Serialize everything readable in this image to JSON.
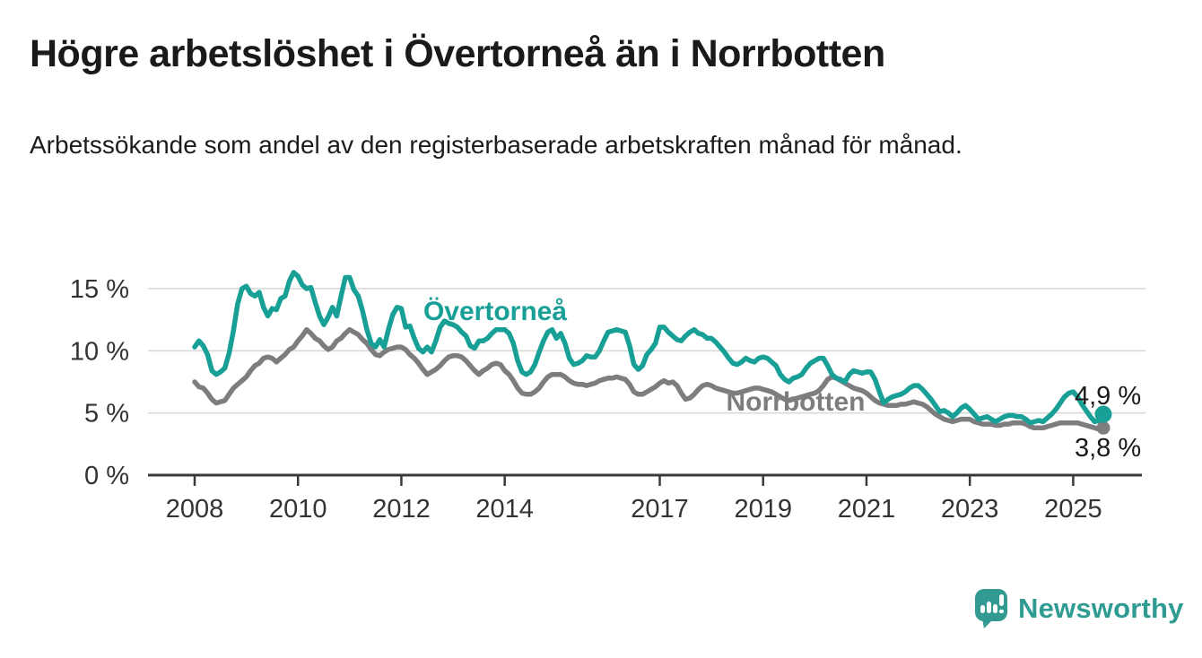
{
  "title": "Högre arbetslöshet i Övertorneå än i Norrbotten",
  "subtitle": "Arbetssökande som andel av den registerbaserade arbetskraften månad för månad.",
  "colors": {
    "overtornea_teal": "#18a096",
    "norrbotten_gray": "#7d7d80",
    "grid_gray": "#d9d9d9",
    "axis_dark": "#3a3a3a",
    "text_dark": "#1a1a1a",
    "tick_text": "#333333",
    "logo_teal": "#339a91"
  },
  "chart_data": {
    "type": "line",
    "frequency": "monthly",
    "x_start": "2008-01",
    "x_end": "2025-08",
    "grid": "horizontal",
    "ylim": [
      0,
      17
    ],
    "y_ticks": [
      {
        "value": 0,
        "label": "0 %"
      },
      {
        "value": 5,
        "label": "5 %"
      },
      {
        "value": 10,
        "label": "10 %"
      },
      {
        "value": 15,
        "label": "15 %"
      }
    ],
    "x_tick_years": [
      "2008",
      "2010",
      "2012",
      "2014",
      "2017",
      "2019",
      "2021",
      "2023",
      "2025"
    ],
    "series": [
      {
        "name": "Norrbotten",
        "end_label": "3,8 %",
        "last_value": 3.8,
        "values": [
          7.5,
          7.1,
          7.0,
          6.6,
          6.1,
          5.8,
          5.9,
          6.0,
          6.5,
          7.0,
          7.3,
          7.6,
          7.9,
          8.4,
          8.8,
          9.0,
          9.4,
          9.5,
          9.4,
          9.1,
          9.4,
          9.7,
          10.1,
          10.3,
          10.8,
          11.2,
          11.7,
          11.4,
          11.0,
          10.8,
          10.4,
          10.1,
          10.3,
          10.8,
          11.0,
          11.4,
          11.7,
          11.5,
          11.3,
          10.9,
          10.6,
          10.1,
          9.7,
          9.6,
          9.9,
          10.1,
          10.2,
          10.3,
          10.3,
          10.1,
          9.7,
          9.4,
          9.0,
          8.5,
          8.1,
          8.3,
          8.5,
          8.8,
          9.2,
          9.5,
          9.6,
          9.6,
          9.5,
          9.2,
          8.8,
          8.4,
          8.1,
          8.4,
          8.6,
          8.9,
          9.0,
          8.9,
          8.4,
          8.1,
          7.6,
          7.0,
          6.6,
          6.5,
          6.5,
          6.7,
          7.0,
          7.5,
          7.9,
          8.1,
          8.1,
          8.1,
          7.9,
          7.6,
          7.4,
          7.3,
          7.3,
          7.2,
          7.3,
          7.4,
          7.6,
          7.7,
          7.8,
          7.8,
          7.9,
          7.8,
          7.7,
          7.3,
          6.7,
          6.5,
          6.5,
          6.7,
          6.9,
          7.1,
          7.4,
          7.6,
          7.4,
          7.5,
          7.2,
          6.6,
          6.1,
          6.2,
          6.5,
          6.9,
          7.2,
          7.3,
          7.2,
          7.0,
          6.9,
          6.8,
          6.7,
          6.6,
          6.6,
          6.7,
          6.8,
          6.9,
          7.0,
          7.0,
          6.9,
          6.8,
          6.7,
          6.5,
          6.3,
          6.1,
          6.0,
          6.1,
          6.2,
          6.3,
          6.4,
          6.5,
          6.6,
          6.8,
          7.2,
          7.7,
          7.9,
          7.8,
          7.6,
          7.4,
          7.2,
          7.0,
          6.9,
          6.8,
          6.6,
          6.3,
          6.0,
          5.8,
          5.7,
          5.6,
          5.6,
          5.6,
          5.7,
          5.7,
          5.8,
          5.9,
          5.8,
          5.7,
          5.5,
          5.2,
          4.9,
          4.7,
          4.5,
          4.4,
          4.3,
          4.4,
          4.5,
          4.5,
          4.5,
          4.3,
          4.2,
          4.1,
          4.1,
          4.1,
          4.0,
          4.0,
          4.1,
          4.1,
          4.2,
          4.2,
          4.2,
          4.1,
          3.9,
          3.8,
          3.8,
          3.8,
          3.9,
          4.0,
          4.1,
          4.2,
          4.2,
          4.2,
          4.2,
          4.2,
          4.1,
          4.0,
          3.9,
          3.8,
          3.7,
          3.8
        ]
      },
      {
        "name": "Övertorneå",
        "end_label": "4,9 %",
        "last_value": 4.9,
        "values": [
          10.3,
          10.8,
          10.4,
          9.7,
          8.4,
          8.1,
          8.3,
          8.6,
          9.8,
          11.6,
          13.8,
          15.0,
          15.2,
          14.6,
          14.4,
          14.7,
          13.5,
          12.8,
          13.4,
          13.3,
          14.2,
          14.4,
          15.6,
          16.3,
          16.0,
          15.3,
          15.0,
          15.1,
          13.9,
          12.8,
          12.1,
          12.7,
          13.5,
          12.8,
          14.4,
          15.9,
          15.9,
          14.9,
          14.4,
          13.2,
          11.7,
          10.6,
          10.3,
          10.9,
          10.3,
          11.7,
          12.9,
          13.5,
          13.4,
          11.9,
          12.0,
          11.0,
          10.2,
          9.9,
          10.3,
          9.9,
          10.8,
          11.9,
          12.4,
          12.2,
          12.1,
          11.9,
          11.5,
          11.2,
          10.4,
          10.2,
          10.8,
          10.8,
          11.0,
          11.4,
          11.7,
          11.7,
          11.7,
          11.4,
          10.6,
          9.2,
          8.3,
          8.1,
          8.3,
          8.9,
          9.9,
          10.8,
          11.5,
          11.7,
          11.0,
          11.4,
          10.6,
          9.4,
          8.9,
          9.0,
          9.2,
          9.6,
          9.5,
          9.5,
          10.0,
          10.8,
          11.5,
          11.6,
          11.7,
          11.6,
          11.5,
          10.4,
          8.9,
          8.5,
          8.8,
          9.7,
          10.1,
          10.6,
          11.9,
          11.9,
          11.5,
          11.2,
          10.9,
          10.8,
          11.2,
          11.5,
          11.7,
          11.4,
          11.3,
          11.0,
          11.0,
          10.7,
          10.3,
          9.9,
          9.4,
          9.0,
          8.9,
          9.1,
          9.4,
          9.2,
          9.1,
          9.4,
          9.5,
          9.4,
          9.1,
          8.8,
          8.1,
          7.7,
          7.5,
          7.8,
          7.9,
          8.1,
          8.6,
          9.0,
          9.2,
          9.4,
          9.4,
          8.8,
          8.1,
          7.8,
          7.7,
          7.5,
          8.1,
          8.4,
          8.3,
          8.2,
          8.3,
          8.3,
          7.7,
          6.7,
          5.8,
          6.1,
          6.3,
          6.4,
          6.5,
          6.7,
          7.0,
          7.2,
          7.2,
          6.9,
          6.5,
          6.1,
          5.6,
          5.1,
          5.2,
          5.0,
          4.7,
          5.0,
          5.4,
          5.6,
          5.3,
          4.9,
          4.5,
          4.6,
          4.7,
          4.5,
          4.3,
          4.5,
          4.7,
          4.8,
          4.8,
          4.7,
          4.7,
          4.5,
          4.2,
          4.3,
          4.4,
          4.3,
          4.6,
          4.9,
          5.3,
          5.8,
          6.3,
          6.6,
          6.7,
          6.3,
          5.7,
          5.2,
          4.7,
          4.3,
          4.4,
          4.9
        ]
      }
    ]
  },
  "logo": {
    "text": "Newsworthy",
    "icon": "newsworthy-speech-bubble-bar-chart-icon"
  }
}
